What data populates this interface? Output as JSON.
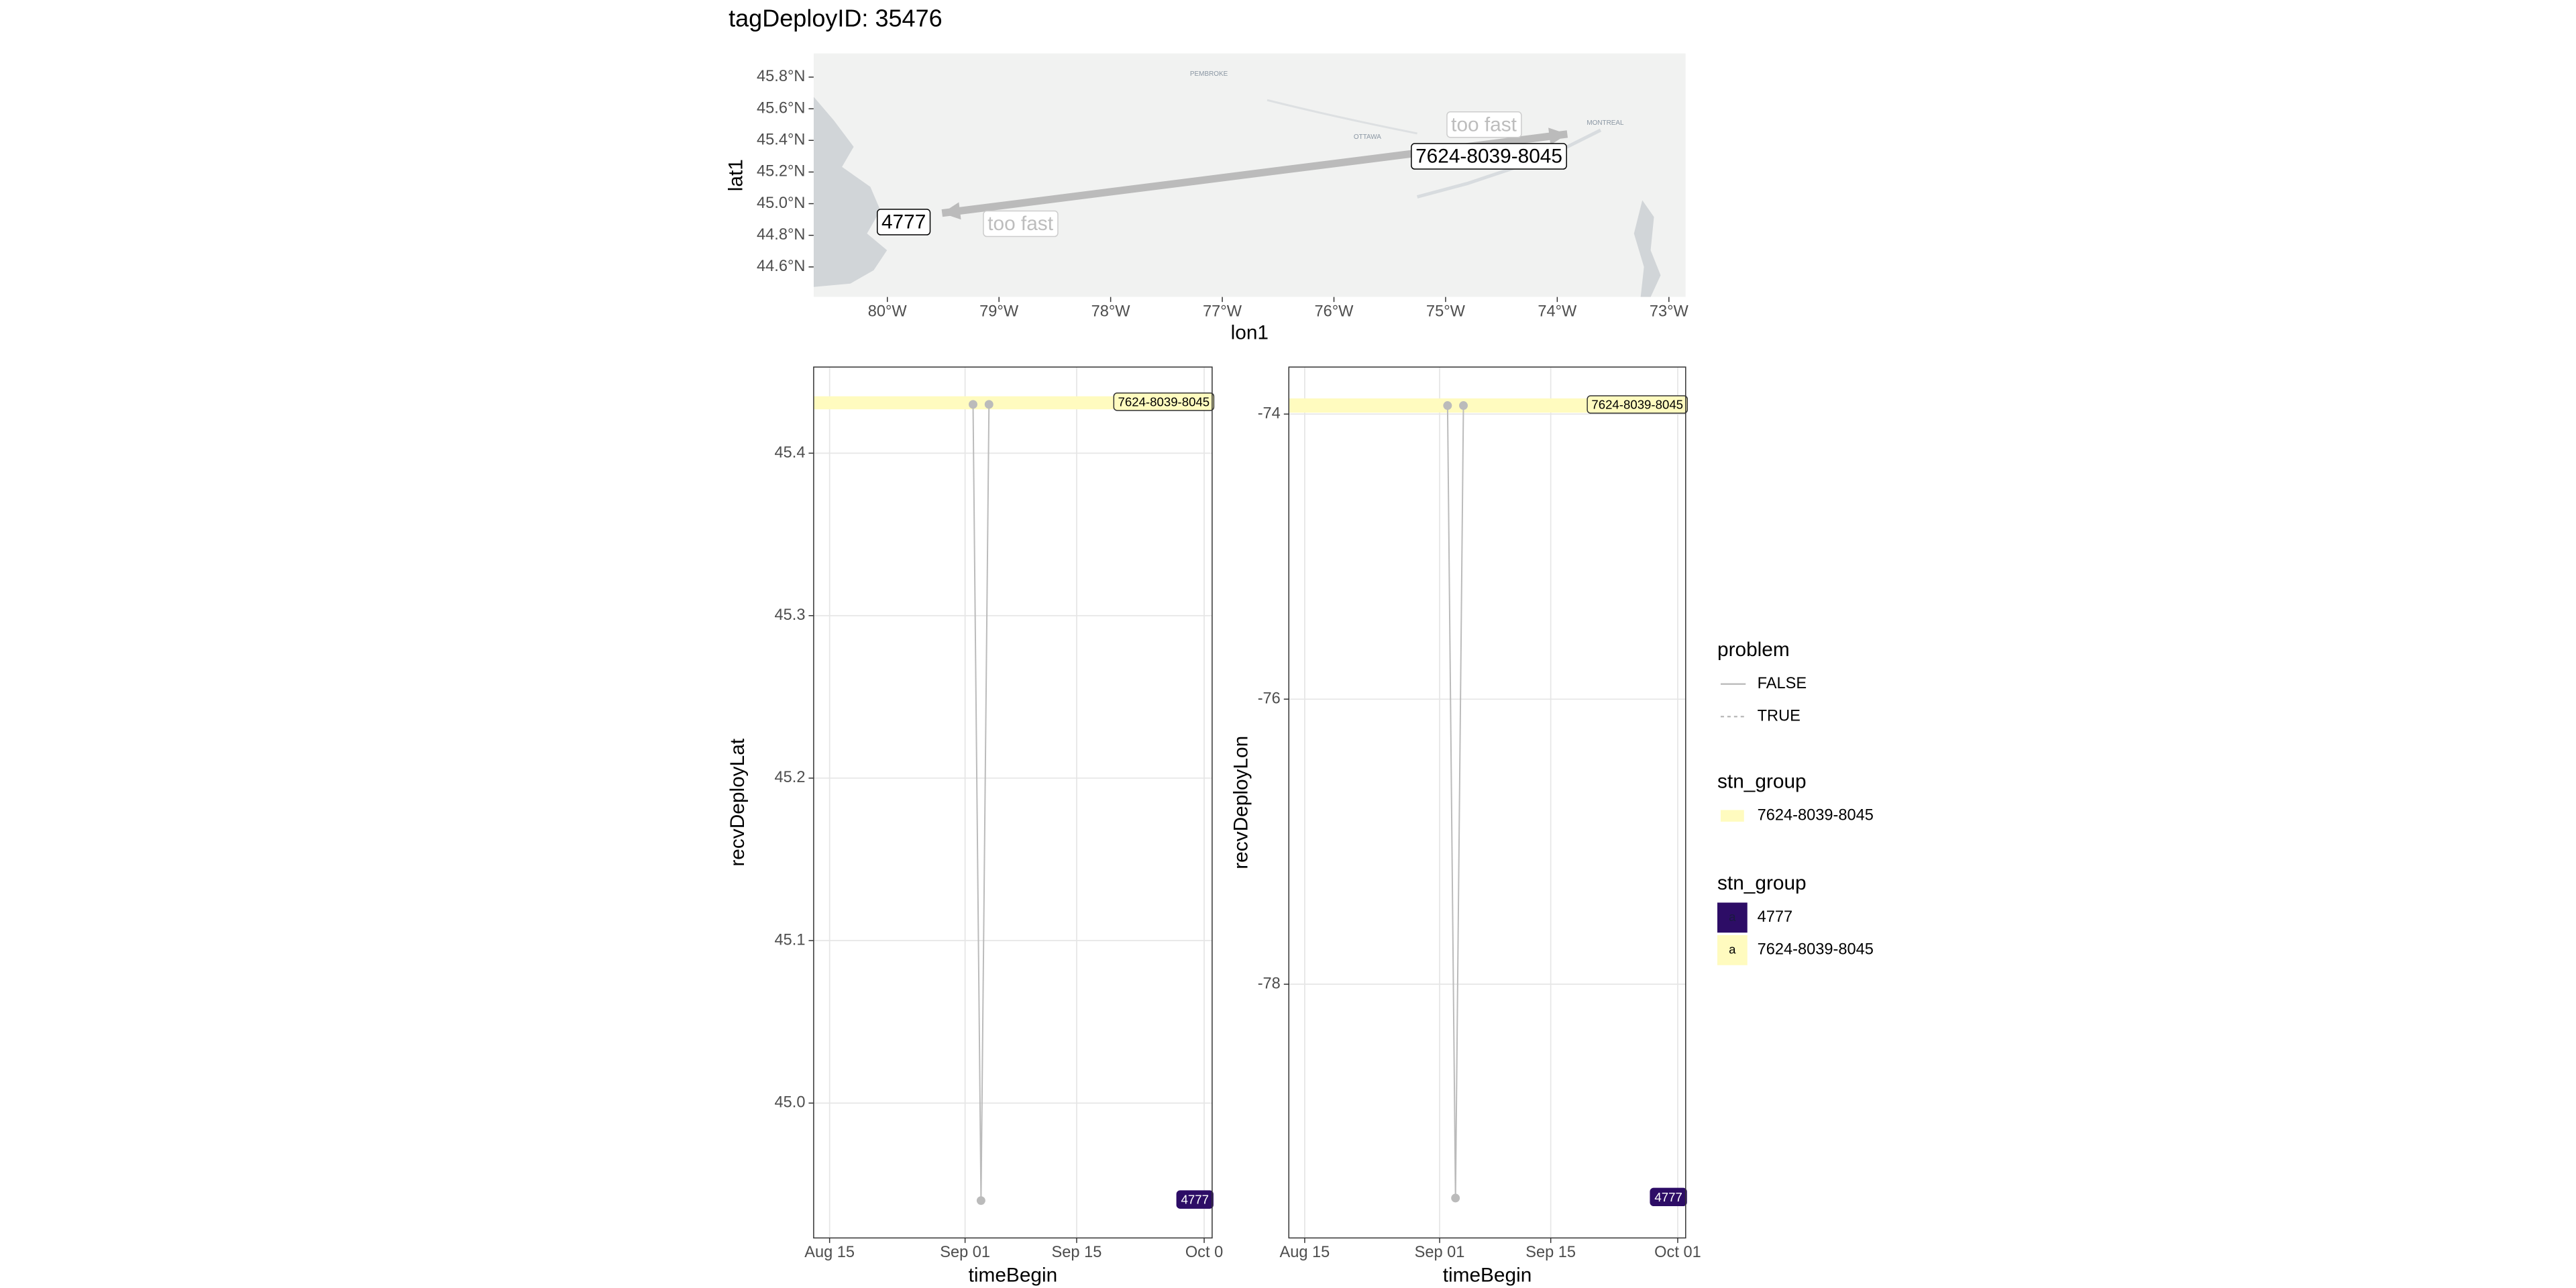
{
  "title": "tagDeployID: 35476",
  "chart_data": [
    {
      "type": "map",
      "x_label": "lon1",
      "y_label": "lat1",
      "xlim": [
        -80.66,
        -72.85
      ],
      "ylim": [
        44.41,
        45.95
      ],
      "xticks": [
        {
          "value": -80,
          "label": "80°W"
        },
        {
          "value": -79,
          "label": "79°W"
        },
        {
          "value": -78,
          "label": "78°W"
        },
        {
          "value": -77,
          "label": "77°W"
        },
        {
          "value": -76,
          "label": "76°W"
        },
        {
          "value": -75,
          "label": "75°W"
        },
        {
          "value": -74,
          "label": "74°W"
        },
        {
          "value": -73,
          "label": "73°W"
        }
      ],
      "yticks": [
        {
          "value": 44.6,
          "label": "44.6°N"
        },
        {
          "value": 44.8,
          "label": "44.8°N"
        },
        {
          "value": 45.0,
          "label": "45.0°N"
        },
        {
          "value": 45.2,
          "label": "45.2°N"
        },
        {
          "value": 45.4,
          "label": "45.4°N"
        },
        {
          "value": 45.6,
          "label": "45.6°N"
        },
        {
          "value": 45.8,
          "label": "45.8°N"
        }
      ],
      "points": [
        {
          "name": "4777",
          "x": -79.51,
          "y": 44.94
        },
        {
          "name": "7624-8039-8045",
          "x": -73.91,
          "y": 45.44
        }
      ],
      "annotations": [
        "too fast",
        "too fast"
      ],
      "arrow_color": "#bbbbbb",
      "place_labels": [
        {
          "name": "PEMBROKE",
          "x": -77.12,
          "y": 45.82
        },
        {
          "name": "OTTAWA",
          "x": -75.7,
          "y": 45.42
        },
        {
          "name": "MONTREAL",
          "x": -73.57,
          "y": 45.51
        }
      ]
    },
    {
      "type": "line",
      "x_label": "timeBegin",
      "y_label": "recvDeployLat",
      "xlim": [
        "08-13",
        "10-02"
      ],
      "ylim": [
        44.917,
        45.453
      ],
      "xticks": [
        {
          "value": "08-15",
          "label": "Aug 15"
        },
        {
          "value": "09-01",
          "label": "Sep 01"
        },
        {
          "value": "09-15",
          "label": "Sep 15"
        },
        {
          "value": "10-01",
          "label": "Oct 0"
        }
      ],
      "yticks": [
        {
          "value": 45,
          "label": "45.0"
        },
        45.1,
        45.2,
        45.3,
        45.4
      ],
      "grid": true,
      "series": [
        {
          "name": "FALSE",
          "color": "#bbbbbb",
          "x": [
            "09-02",
            "09-03",
            "09-04"
          ],
          "values": [
            45.43,
            44.94,
            45.43
          ]
        }
      ],
      "bands": [
        {
          "name": "7624-8039-8045",
          "color": "#fffbbf",
          "ymin": 45.427,
          "ymax": 45.435
        }
      ],
      "tags": [
        {
          "name": "4777",
          "color": "#2d0d66",
          "y": 44.94
        }
      ]
    },
    {
      "type": "line",
      "x_label": "timeBegin",
      "y_label": "recvDeployLon",
      "xlim": [
        "08-13",
        "10-02"
      ],
      "ylim": [
        -79.78,
        -73.67
      ],
      "xticks": [
        {
          "value": "08-15",
          "label": "Aug 15"
        },
        {
          "value": "09-01",
          "label": "Sep 01"
        },
        {
          "value": "09-15",
          "label": "Sep 15"
        },
        {
          "value": "10-01",
          "label": "Oct 01"
        }
      ],
      "yticks": [
        -74,
        -76,
        -78
      ],
      "grid": true,
      "series": [
        {
          "name": "FALSE",
          "color": "#bbbbbb",
          "x": [
            "09-02",
            "09-03",
            "09-04"
          ],
          "values": [
            -73.94,
            -79.5,
            -73.94
          ]
        }
      ],
      "bands": [
        {
          "name": "7624-8039-8045",
          "color": "#fffbbf",
          "ymin": -73.99,
          "ymax": -73.89
        }
      ],
      "tags": [
        {
          "name": "4777",
          "color": "#2d0d66",
          "y": -79.5
        }
      ]
    }
  ],
  "legend": [
    {
      "title": "problem",
      "entries": [
        {
          "name": "FALSE",
          "style": "solid",
          "color": "#bbbbbb"
        },
        {
          "name": "TRUE",
          "style": "dashed",
          "color": "#bbbbbb"
        }
      ]
    },
    {
      "title": "stn_group",
      "entries": [
        {
          "name": "7624-8039-8045",
          "color": "#fffbbf"
        }
      ]
    },
    {
      "title": "stn_group",
      "key_text": "a",
      "entries": [
        {
          "name": "4777",
          "color": "#2d0d66"
        },
        {
          "name": "7624-8039-8045",
          "color": "#fffbbf"
        }
      ]
    }
  ]
}
